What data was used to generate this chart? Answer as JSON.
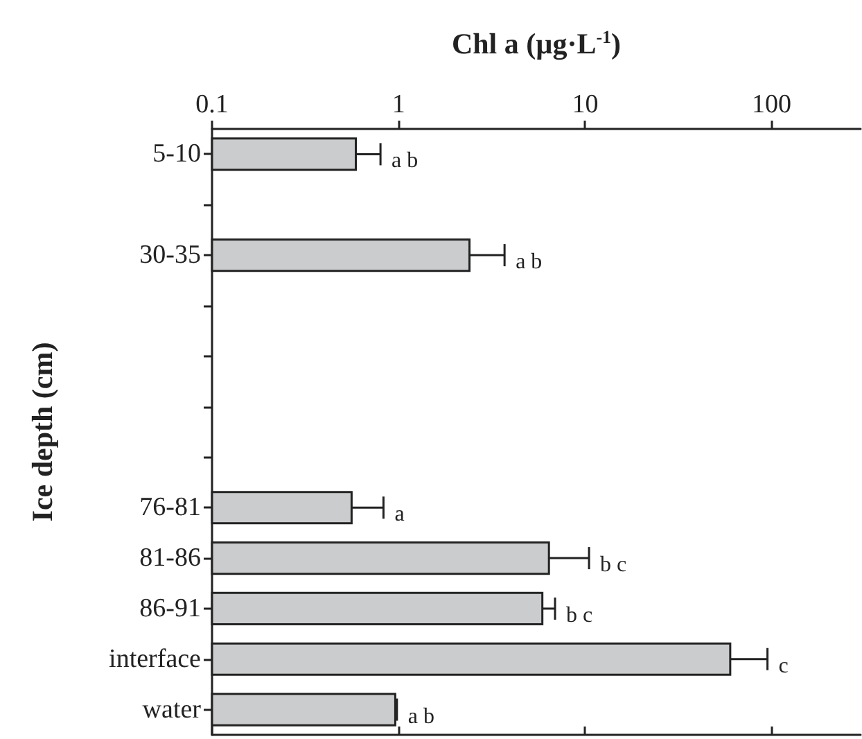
{
  "chart_data": {
    "type": "bar",
    "orientation": "horizontal",
    "xlabel": "Chl a (µg·L$^{-1}$)",
    "ylabel": "Ice depth (cm)",
    "categories": [
      "5-10",
      null,
      "30-35",
      null,
      null,
      null,
      null,
      "76-81",
      "81-86",
      "86-91",
      "interface",
      "water"
    ],
    "values": [
      0.59,
      null,
      2.4,
      null,
      null,
      null,
      null,
      0.56,
      6.4,
      5.9,
      60,
      0.96
    ],
    "errors": [
      [
        0.59,
        0.8
      ],
      null,
      [
        2.4,
        3.7
      ],
      null,
      null,
      null,
      null,
      [
        0.56,
        0.83
      ],
      [
        6.4,
        10.5
      ],
      [
        5.9,
        6.9
      ],
      [
        60,
        95
      ],
      [
        0.96,
        0.98
      ]
    ],
    "color": "#cbcccd",
    "log": "x",
    "xlim": [
      0.1,
      300
    ],
    "xticks": [
      0.1,
      1,
      10,
      100
    ],
    "grid": false,
    "annotations": [
      "a b",
      "a b",
      "a",
      "b c",
      "b c",
      "c",
      "a b"
    ]
  }
}
